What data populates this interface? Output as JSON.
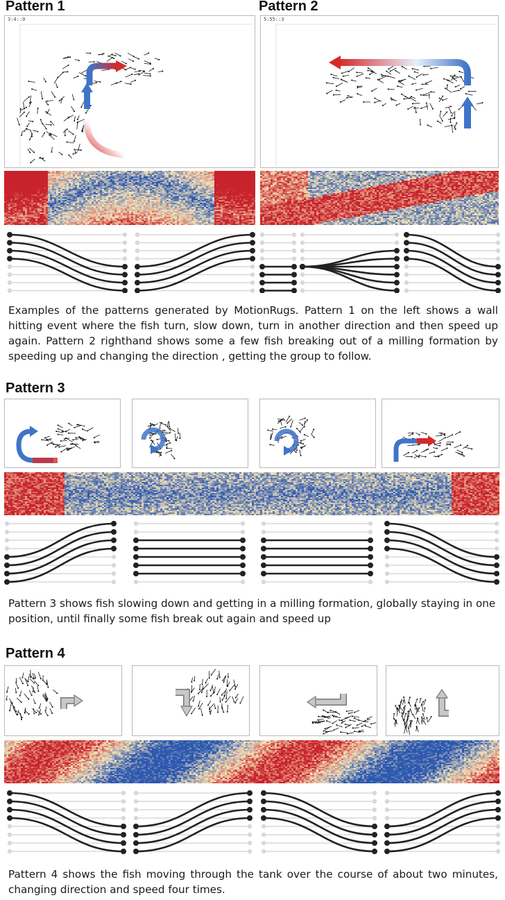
{
  "patterns": [
    {
      "title": "Pattern 1",
      "timestamp": "3:4::0",
      "caption": ""
    },
    {
      "title": "Pattern 2",
      "timestamp": "5:55::3",
      "caption": "Examples of the patterns generated by MotionRugs. Pattern 1 on the left shows a wall hitting event where the fish turn, slow down, turn in another direction and then speed up again. Pattern 2 righthand shows some a few fish breaking out of a milling formation by speeding up and changing the direction , getting the group to follow."
    },
    {
      "title": "Pattern 3",
      "caption": "Pattern 3 shows fish slowing down and getting in a milling formation, globally staying in one position, until finally some fish break out again and speed up"
    },
    {
      "title": "Pattern 4",
      "caption": "Pattern 4 shows the fish moving through the tank over the course of about two minutes, changing direction and speed four times."
    }
  ],
  "colors": {
    "rug_fast": "#c8232c",
    "rug_mid": "#f4e2b8",
    "rug_slow": "#2c58b0",
    "arrow_red": "#d42a2a",
    "arrow_blue": "#3f74c8",
    "arrow_gray": "#9a9a9a",
    "line_dark": "#222222",
    "line_light": "#d8d8d8"
  },
  "icons": [
    "turn-arrow-icon",
    "straight-arrow-icon",
    "circular-arrow-icon",
    "gray-turn-arrow-icon"
  ]
}
